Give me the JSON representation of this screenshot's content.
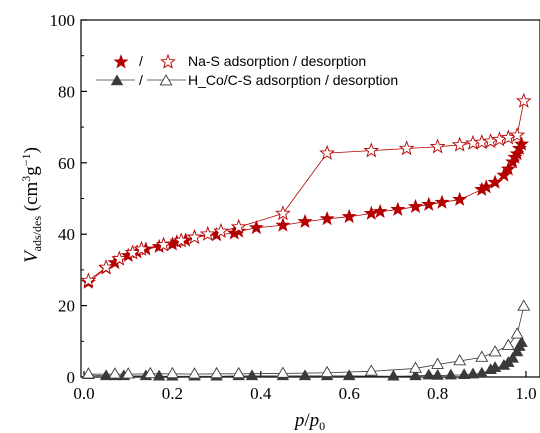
{
  "chart_data": {
    "type": "line",
    "title": "",
    "xlabel": "p/p0",
    "ylabel": "V_ads/des (cm3g-1)",
    "xlim": [
      0.0,
      1.0
    ],
    "ylim": [
      0,
      100
    ],
    "xticks": [
      "0.0",
      "0.2",
      "0.4",
      "0.6",
      "0.8",
      "1.0"
    ],
    "yticks": [
      "0",
      "20",
      "40",
      "60",
      "80",
      "100"
    ],
    "grid": false,
    "legend_position": "top-left",
    "legend": [
      {
        "separator": "/",
        "label": "Na-S adsorption / desorption"
      },
      {
        "separator": "/",
        "label": "H_Co/C-S adsorption / desorption"
      }
    ],
    "series": [
      {
        "name": "Na-S adsorption",
        "marker": "star-filled",
        "color": "#b30000",
        "x": [
          0.01,
          0.05,
          0.07,
          0.08,
          0.1,
          0.12,
          0.14,
          0.17,
          0.2,
          0.21,
          0.23,
          0.25,
          0.3,
          0.34,
          0.35,
          0.39,
          0.45,
          0.5,
          0.55,
          0.6,
          0.65,
          0.67,
          0.71,
          0.75,
          0.78,
          0.81,
          0.85,
          0.9,
          0.91,
          0.93,
          0.95,
          0.96,
          0.97,
          0.975,
          0.98,
          0.985,
          0.99
        ],
        "y": [
          26.5,
          30.5,
          32.0,
          33.0,
          34.0,
          35.0,
          35.8,
          36.5,
          37.2,
          37.8,
          38.3,
          39.2,
          39.8,
          40.3,
          40.8,
          41.8,
          42.5,
          43.5,
          44.3,
          44.9,
          45.8,
          46.3,
          46.9,
          47.7,
          48.3,
          48.9,
          49.7,
          52.5,
          53.2,
          54.5,
          56.5,
          58.2,
          60.2,
          61.5,
          62.5,
          64.0,
          65.2
        ]
      },
      {
        "name": "Na-S desorption",
        "marker": "star-open",
        "color": "#b30000",
        "x": [
          0.01,
          0.05,
          0.08,
          0.11,
          0.13,
          0.18,
          0.22,
          0.25,
          0.28,
          0.31,
          0.35,
          0.45,
          0.55,
          0.65,
          0.73,
          0.8,
          0.85,
          0.88,
          0.9,
          0.92,
          0.94,
          0.96,
          0.98,
          0.995
        ],
        "y": [
          27.0,
          30.7,
          33.1,
          34.8,
          35.8,
          37.0,
          38.2,
          39.1,
          40.0,
          40.8,
          42.0,
          45.8,
          62.7,
          63.4,
          64.0,
          64.5,
          65.0,
          65.5,
          65.7,
          66.0,
          66.5,
          67.0,
          67.7,
          77.3
        ]
      },
      {
        "name": "H_Co/C-S adsorption",
        "marker": "triangle-filled",
        "color": "#3a3a3a",
        "x": [
          0.01,
          0.05,
          0.07,
          0.09,
          0.14,
          0.17,
          0.2,
          0.25,
          0.3,
          0.35,
          0.38,
          0.45,
          0.5,
          0.55,
          0.6,
          0.7,
          0.75,
          0.78,
          0.8,
          0.83,
          0.86,
          0.88,
          0.9,
          0.92,
          0.93,
          0.95,
          0.96,
          0.97,
          0.98,
          0.985,
          0.99
        ],
        "y": [
          0.6,
          0.3,
          0.3,
          0.3,
          0.3,
          0.2,
          0.2,
          0.2,
          0.2,
          0.3,
          0.3,
          0.3,
          0.3,
          0.3,
          0.3,
          0.2,
          0.3,
          0.5,
          0.4,
          0.5,
          0.6,
          0.8,
          1.0,
          2.0,
          2.6,
          3.2,
          4.0,
          5.2,
          7.0,
          8.5,
          9.6
        ]
      },
      {
        "name": "H_Co/C-S desorption",
        "marker": "triangle-open",
        "color": "#3a3a3a",
        "x": [
          0.01,
          0.07,
          0.1,
          0.15,
          0.2,
          0.25,
          0.3,
          0.35,
          0.45,
          0.55,
          0.65,
          0.75,
          0.8,
          0.85,
          0.9,
          0.93,
          0.96,
          0.98,
          0.995
        ],
        "y": [
          0.8,
          0.8,
          0.8,
          0.9,
          0.9,
          0.8,
          0.9,
          0.9,
          1.0,
          1.2,
          1.6,
          2.4,
          3.5,
          4.5,
          5.5,
          7.0,
          8.8,
          12.0,
          19.8
        ]
      }
    ]
  }
}
